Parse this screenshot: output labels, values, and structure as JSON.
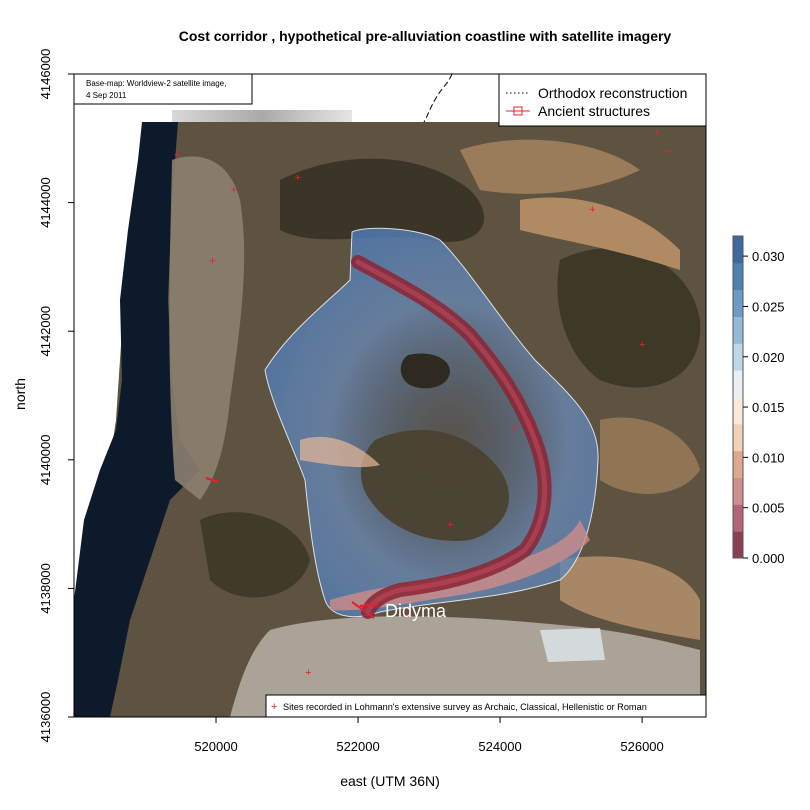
{
  "title": "Cost corridor , hypothetical pre-alluviation coastline with satellite imagery",
  "axes": {
    "xlabel": "east (UTM 36N)",
    "ylabel": "north",
    "xticks": [
      "520000",
      "522000",
      "524000",
      "526000"
    ],
    "yticks": [
      "4136000",
      "4138000",
      "4140000",
      "4142000",
      "4144000",
      "4146000"
    ],
    "xlim": [
      518000,
      526900
    ],
    "ylim": [
      4136000,
      4146000
    ]
  },
  "basemap_note": {
    "line1": "Base-map: Worldview-2 satellite image,",
    "line2": "4 Sep 2011"
  },
  "legend": {
    "items": [
      {
        "label": "Orthodox reconstruction",
        "style": "dotted",
        "color": "#000000"
      },
      {
        "label": "Ancient structures",
        "style": "line-square",
        "color": "#e8202a"
      }
    ]
  },
  "sites_legend": {
    "label": "Sites recorded in Lohmann's extensive survey as Archaic, Classical, Hellenistic or Roman",
    "symbol": "+",
    "color": "#e8202a"
  },
  "place_label": "Didyma",
  "colorbar": {
    "ticks": [
      "0.000",
      "0.005",
      "0.010",
      "0.015",
      "0.020",
      "0.025",
      "0.030"
    ],
    "colors": [
      "#8a3f55",
      "#b56478",
      "#cf8f8c",
      "#dea98f",
      "#efd2b7",
      "#fbe9da",
      "#e8f0f6",
      "#c0d7e8",
      "#93bbd8",
      "#6c9cc6",
      "#4f81b3",
      "#3e6aa0"
    ]
  },
  "chart_data": {
    "type": "map",
    "title": "Cost corridor , hypothetical pre-alluviation coastline with satellite imagery",
    "xlabel": "east (UTM 36N)",
    "ylabel": "north",
    "xlim": [
      518000,
      526900
    ],
    "ylim": [
      4136000,
      4146000
    ],
    "colorbar_range": [
      0.0,
      0.032
    ],
    "sites": [
      [
        519450,
        4144750
      ],
      [
        520250,
        4144200
      ],
      [
        521150,
        4144400
      ],
      [
        519950,
        4143100
      ],
      [
        525300,
        4143900
      ],
      [
        526200,
        4145100
      ],
      [
        526350,
        4144800
      ],
      [
        526000,
        4141800
      ],
      [
        524200,
        4140500
      ],
      [
        524400,
        4140600
      ],
      [
        523300,
        4139000
      ],
      [
        522700,
        4137600
      ],
      [
        521300,
        4136700
      ]
    ]
  }
}
